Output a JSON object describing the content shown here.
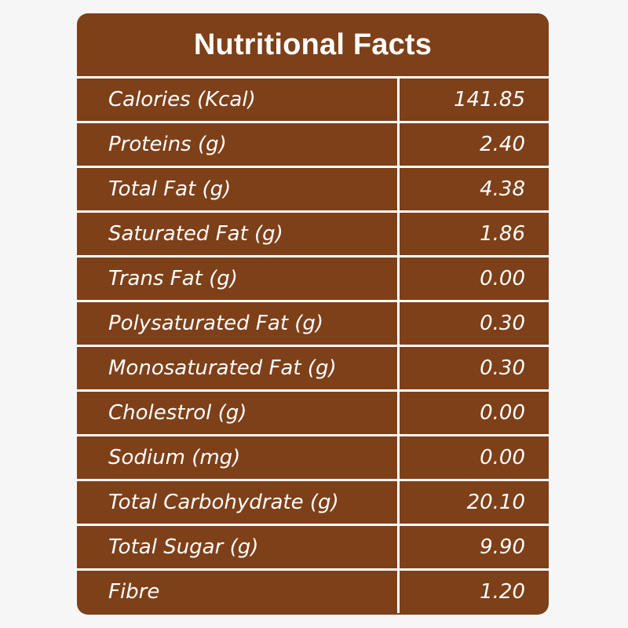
{
  "title": "Nutritional Facts",
  "rows": [
    {
      "label": "Calories (Kcal)",
      "value": "141.85"
    },
    {
      "label": "Proteins (g)",
      "value": "2.40"
    },
    {
      "label": "Total Fat (g)",
      "value": "4.38"
    },
    {
      "label": "Saturated Fat (g)",
      "value": "1.86"
    },
    {
      "label": "Trans Fat (g)",
      "value": "0.00"
    },
    {
      "label": "Polysaturated Fat (g)",
      "value": "0.30"
    },
    {
      "label": "Monosaturated Fat (g)",
      "value": "0.30"
    },
    {
      "label": "Cholestrol (g)",
      "value": "0.00"
    },
    {
      "label": "Sodium (mg)",
      "value": "0.00"
    },
    {
      "label": "Total Carbohydrate (g)",
      "value": "20.10"
    },
    {
      "label": "Total Sugar (g)",
      "value": "9.90"
    },
    {
      "label": "Fibre",
      "value": "1.20"
    }
  ],
  "colors": {
    "panel": "#7e4019",
    "text": "#ffffff",
    "background": "#f6f6f6"
  }
}
